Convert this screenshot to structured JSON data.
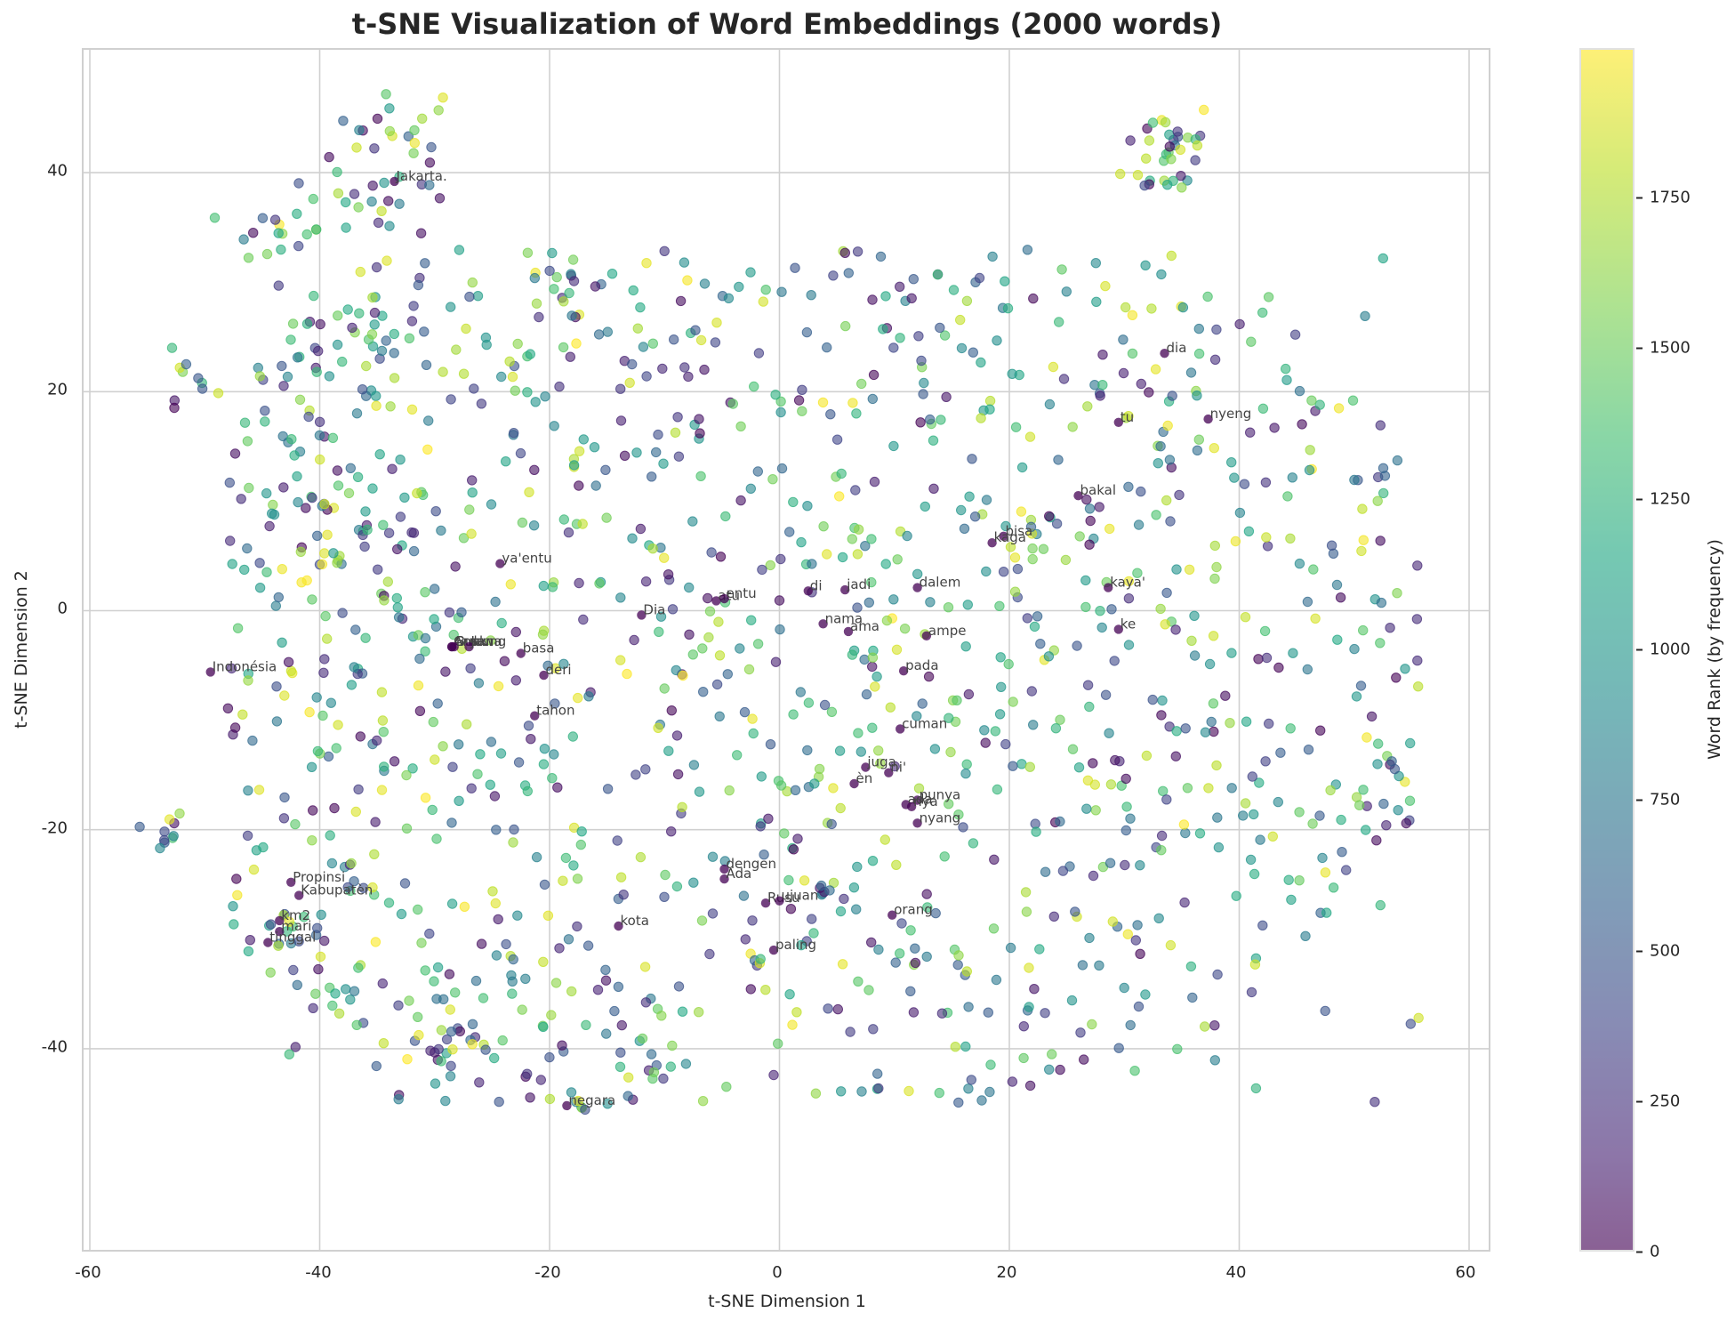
{
  "chart_data": {
    "type": "scatter",
    "title": "t-SNE Visualization of Word Embeddings (2000 words)",
    "xlabel": "t-SNE Dimension 1",
    "ylabel": "t-SNE Dimension 2",
    "xlim": [
      -60.5,
      62
    ],
    "ylim": [
      -59,
      51
    ],
    "xticks": [
      -60,
      -40,
      -20,
      0,
      20,
      40,
      60
    ],
    "yticks": [
      -40,
      -20,
      0,
      20,
      40
    ],
    "grid": true,
    "colormap": "viridis",
    "alpha": 0.6,
    "n_points": 2000,
    "colorbar": {
      "label": "Word Rank (by frequency)",
      "range": [
        0,
        1999
      ],
      "ticks": [
        0,
        250,
        500,
        750,
        1000,
        1250,
        1500,
        1750
      ]
    },
    "annotations": [
      {
        "text": "Jakarta.",
        "x": -33.5,
        "y": 39.2
      },
      {
        "text": "ya'entu",
        "x": -24.3,
        "y": 4.3
      },
      {
        "text": "Indonésia",
        "x": -49.5,
        "y": -5.6
      },
      {
        "text": "Anak",
        "x": -28.5,
        "y": -3.3
      },
      {
        "text": "Gunung",
        "x": -28.5,
        "y": -3.3
      },
      {
        "text": "Bulan",
        "x": -28.3,
        "y": -3.3
      },
      {
        "text": "Jawa",
        "x": -27.0,
        "y": -3.3
      },
      {
        "text": "basa",
        "x": -22.5,
        "y": -3.9
      },
      {
        "text": "deri",
        "x": -20.5,
        "y": -5.9
      },
      {
        "text": "tahon",
        "x": -21.3,
        "y": -9.6
      },
      {
        "text": "Dia",
        "x": -12.0,
        "y": -0.4
      },
      {
        "text": "atu",
        "x": -5.5,
        "y": 0.9
      },
      {
        "text": "entu",
        "x": -4.8,
        "y": 1.1
      },
      {
        "text": "di",
        "x": 2.5,
        "y": 1.8
      },
      {
        "text": "jadi",
        "x": 5.7,
        "y": 1.9
      },
      {
        "text": "dalem",
        "x": 12.0,
        "y": 2.1
      },
      {
        "text": "nama",
        "x": 3.8,
        "y": -1.2
      },
      {
        "text": "ama",
        "x": 6.0,
        "y": -1.9
      },
      {
        "text": "ampe",
        "x": 12.8,
        "y": -2.3
      },
      {
        "text": "pada",
        "x": 10.8,
        "y": -5.5
      },
      {
        "text": "bisa",
        "x": 19.5,
        "y": 6.8
      },
      {
        "text": "kaga",
        "x": 18.5,
        "y": 6.2
      },
      {
        "text": "bakal",
        "x": 26.0,
        "y": 10.5
      },
      {
        "text": "kaya'",
        "x": 28.6,
        "y": 2.1
      },
      {
        "text": "ke",
        "x": 29.5,
        "y": -1.7
      },
      {
        "text": "dia",
        "x": 33.5,
        "y": 23.5
      },
      {
        "text": "tu",
        "x": 29.5,
        "y": 17.2
      },
      {
        "text": "nyeng",
        "x": 37.3,
        "y": 17.5
      },
      {
        "text": "cuman",
        "x": 10.5,
        "y": -10.8
      },
      {
        "text": "juga",
        "x": 7.5,
        "y": -14.3
      },
      {
        "text": "ni'",
        "x": 9.5,
        "y": -14.8
      },
      {
        "text": "èn",
        "x": 6.5,
        "y": -15.8
      },
      {
        "text": "punya",
        "x": 12.0,
        "y": -17.3
      },
      {
        "text": "ada",
        "x": 11.0,
        "y": -17.7
      },
      {
        "text": "nya",
        "x": 11.5,
        "y": -17.9
      },
      {
        "text": "nyang",
        "x": 12.0,
        "y": -19.4
      },
      {
        "text": "dengen",
        "x": -4.8,
        "y": -23.6
      },
      {
        "text": "Ada",
        "x": -4.8,
        "y": -24.5
      },
      {
        "text": "Rusu",
        "x": -1.2,
        "y": -26.7
      },
      {
        "text": "ujuan",
        "x": 0.0,
        "y": -26.5
      },
      {
        "text": "orang",
        "x": 9.8,
        "y": -27.8
      },
      {
        "text": "paling",
        "x": -0.5,
        "y": -31.0
      },
      {
        "text": "kota",
        "x": -14.0,
        "y": -28.8
      },
      {
        "text": "Propinsi",
        "x": -42.5,
        "y": -24.8
      },
      {
        "text": "Kabupatèn",
        "x": -41.8,
        "y": -26.0
      },
      {
        "text": "km2",
        "x": -43.5,
        "y": -28.3
      },
      {
        "text": "mari",
        "x": -43.5,
        "y": -29.3
      },
      {
        "text": "tinggal",
        "x": -44.5,
        "y": -30.3
      },
      {
        "text": "negara",
        "x": -18.5,
        "y": -45.2
      }
    ]
  },
  "labels": {
    "title": "t-SNE Visualization of Word Embeddings (2000 words)",
    "xlabel": "t-SNE Dimension 1",
    "ylabel": "t-SNE Dimension 2",
    "cblabel": "Word Rank (by frequency)",
    "xticks": [
      "-60",
      "-40",
      "-20",
      "0",
      "20",
      "40",
      "60"
    ],
    "yticks": [
      "40",
      "20",
      "0",
      "-20",
      "-40"
    ],
    "cbticks": [
      "1750",
      "1500",
      "1250",
      "1000",
      "750",
      "500",
      "250",
      "0"
    ]
  }
}
